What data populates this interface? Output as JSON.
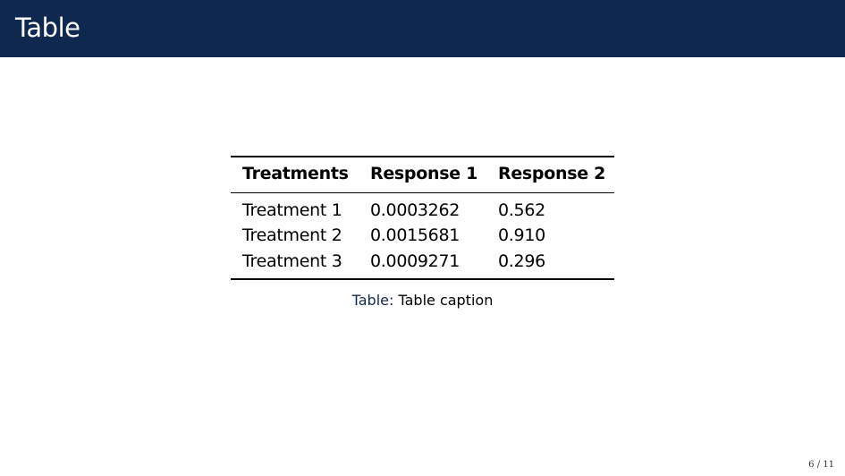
{
  "slide": {
    "title": "Table",
    "page_number": "6 / 11",
    "header_color": "#0f284f"
  },
  "table": {
    "headers": [
      "Treatments",
      "Response 1",
      "Response 2"
    ],
    "rows": [
      [
        "Treatment 1",
        "0.0003262",
        "0.562"
      ],
      [
        "Treatment 2",
        "0.0015681",
        "0.910"
      ],
      [
        "Treatment 3",
        "0.0009271",
        "0.296"
      ]
    ],
    "caption_label": "Table:",
    "caption_text": "Table caption"
  }
}
